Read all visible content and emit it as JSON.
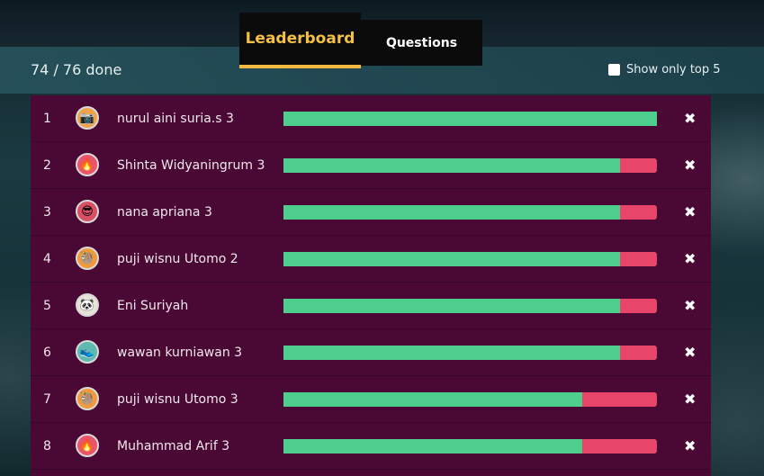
{
  "tabs": {
    "leaderboard_label": "Leaderboard",
    "questions_label": "Questions"
  },
  "progress_text": "74 / 76 done",
  "filter": {
    "top5_label": "Show only top 5",
    "checked": false
  },
  "colors": {
    "correct": "#4ecf8e",
    "incorrect": "#e8456b",
    "panel": "#4a0934",
    "active_tab": "#f5c045"
  },
  "rows": [
    {
      "rank": "1",
      "name": "nurul aini suria.s 3",
      "avatar_icon": "camera-avatar-icon",
      "glyph": "📷",
      "avatar_bg": "#f2a24a",
      "correct_fraction": 1.0
    },
    {
      "rank": "2",
      "name": "Shinta Widyaningrum 3",
      "avatar_icon": "fire-avatar-icon",
      "glyph": "🔥",
      "avatar_bg": "#e8546a",
      "correct_fraction": 0.9
    },
    {
      "rank": "3",
      "name": "nana apriana 3",
      "avatar_icon": "mask-avatar-icon",
      "glyph": "😎",
      "avatar_bg": "#d94f63",
      "correct_fraction": 0.9
    },
    {
      "rank": "4",
      "name": "puji wisnu Utomo 2",
      "avatar_icon": "sloth-avatar-icon",
      "glyph": "🦥",
      "avatar_bg": "#f29a3a",
      "correct_fraction": 0.9
    },
    {
      "rank": "5",
      "name": "Eni Suriyah",
      "avatar_icon": "panda-avatar-icon",
      "glyph": "🐼",
      "avatar_bg": "#e8e3d8",
      "correct_fraction": 0.9
    },
    {
      "rank": "6",
      "name": "wawan kurniawan 3",
      "avatar_icon": "shoe-avatar-icon",
      "glyph": "👟",
      "avatar_bg": "#5fb9b0",
      "correct_fraction": 0.9
    },
    {
      "rank": "7",
      "name": "puji wisnu Utomo 3",
      "avatar_icon": "sloth-avatar-icon",
      "glyph": "🦥",
      "avatar_bg": "#f29a3a",
      "correct_fraction": 0.8
    },
    {
      "rank": "8",
      "name": "Muhammad Arif 3",
      "avatar_icon": "fire-avatar-icon",
      "glyph": "🔥",
      "avatar_bg": "#e8546a",
      "correct_fraction": 0.8
    }
  ],
  "remove_glyph": "✖"
}
